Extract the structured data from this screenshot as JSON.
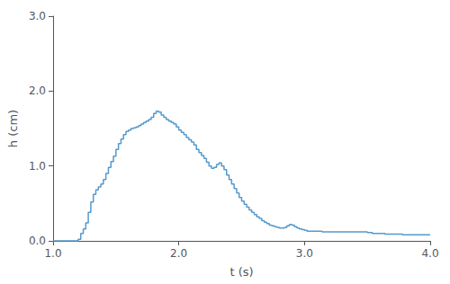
{
  "chart_data": {
    "type": "step",
    "color": "#5599cc",
    "xlabel": "t (s)",
    "ylabel": "h (cm)",
    "xlim": [
      1.0,
      4.0
    ],
    "ylim": [
      0.0,
      3.0
    ],
    "xticks": [
      {
        "value": 1.0,
        "label": "1.0"
      },
      {
        "value": 2.0,
        "label": "2.0"
      },
      {
        "value": 3.0,
        "label": "3.0"
      },
      {
        "value": 4.0,
        "label": "4.0"
      }
    ],
    "yticks": [
      {
        "value": 0.0,
        "label": "0.0"
      },
      {
        "value": 1.0,
        "label": "1.0"
      },
      {
        "value": 2.0,
        "label": "2.0"
      },
      {
        "value": 3.0,
        "label": "3.0"
      }
    ],
    "grid": false,
    "x": [
      1.0,
      1.02,
      1.04,
      1.06,
      1.08,
      1.1,
      1.12,
      1.14,
      1.16,
      1.18,
      1.2,
      1.22,
      1.24,
      1.26,
      1.28,
      1.3,
      1.32,
      1.34,
      1.36,
      1.38,
      1.4,
      1.42,
      1.44,
      1.46,
      1.48,
      1.5,
      1.52,
      1.54,
      1.56,
      1.58,
      1.6,
      1.62,
      1.64,
      1.66,
      1.68,
      1.7,
      1.72,
      1.74,
      1.76,
      1.78,
      1.8,
      1.82,
      1.84,
      1.86,
      1.88,
      1.9,
      1.92,
      1.94,
      1.96,
      1.98,
      2.0,
      2.02,
      2.04,
      2.06,
      2.08,
      2.1,
      2.12,
      2.14,
      2.16,
      2.18,
      2.2,
      2.22,
      2.24,
      2.26,
      2.28,
      2.3,
      2.32,
      2.34,
      2.36,
      2.38,
      2.4,
      2.42,
      2.44,
      2.46,
      2.48,
      2.5,
      2.52,
      2.54,
      2.56,
      2.58,
      2.6,
      2.62,
      2.64,
      2.66,
      2.68,
      2.7,
      2.72,
      2.74,
      2.76,
      2.78,
      2.8,
      2.82,
      2.84,
      2.86,
      2.88,
      2.9,
      2.92,
      2.94,
      2.96,
      2.98,
      3.0,
      3.02,
      3.04,
      3.06,
      3.08,
      3.1,
      3.12,
      3.14,
      3.16,
      3.18,
      3.2,
      3.22,
      3.24,
      3.26,
      3.28,
      3.3,
      3.32,
      3.34,
      3.36,
      3.38,
      3.4,
      3.42,
      3.44,
      3.46,
      3.48,
      3.5,
      3.52,
      3.54,
      3.56,
      3.58,
      3.6,
      3.62,
      3.64,
      3.66,
      3.68,
      3.7,
      3.72,
      3.74,
      3.76,
      3.78,
      3.8,
      3.82,
      3.84,
      3.86,
      3.88,
      3.9,
      3.92,
      3.94,
      3.96,
      3.98,
      4.0
    ],
    "values": [
      0.0,
      0.0,
      0.0,
      0.0,
      0.0,
      0.0,
      0.0,
      0.0,
      0.0,
      0.0,
      0.02,
      0.1,
      0.16,
      0.24,
      0.38,
      0.52,
      0.62,
      0.68,
      0.72,
      0.76,
      0.82,
      0.9,
      0.98,
      1.06,
      1.13,
      1.22,
      1.3,
      1.36,
      1.42,
      1.46,
      1.48,
      1.5,
      1.51,
      1.52,
      1.54,
      1.56,
      1.58,
      1.6,
      1.62,
      1.65,
      1.7,
      1.73,
      1.72,
      1.68,
      1.65,
      1.62,
      1.6,
      1.58,
      1.56,
      1.52,
      1.48,
      1.45,
      1.42,
      1.38,
      1.35,
      1.32,
      1.28,
      1.22,
      1.18,
      1.14,
      1.1,
      1.05,
      1.0,
      0.97,
      0.98,
      1.02,
      1.04,
      1.0,
      0.95,
      0.88,
      0.82,
      0.76,
      0.7,
      0.64,
      0.58,
      0.53,
      0.49,
      0.45,
      0.41,
      0.38,
      0.35,
      0.32,
      0.3,
      0.27,
      0.25,
      0.23,
      0.21,
      0.2,
      0.19,
      0.18,
      0.17,
      0.17,
      0.18,
      0.2,
      0.22,
      0.21,
      0.19,
      0.17,
      0.16,
      0.15,
      0.14,
      0.13,
      0.13,
      0.13,
      0.13,
      0.13,
      0.13,
      0.12,
      0.12,
      0.12,
      0.12,
      0.12,
      0.12,
      0.12,
      0.12,
      0.12,
      0.12,
      0.12,
      0.12,
      0.12,
      0.12,
      0.12,
      0.12,
      0.12,
      0.12,
      0.11,
      0.11,
      0.1,
      0.1,
      0.1,
      0.1,
      0.1,
      0.09,
      0.09,
      0.09,
      0.09,
      0.09,
      0.09,
      0.09,
      0.08,
      0.08,
      0.08,
      0.08,
      0.08,
      0.08,
      0.08,
      0.08,
      0.08,
      0.08,
      0.08,
      0.08
    ]
  }
}
